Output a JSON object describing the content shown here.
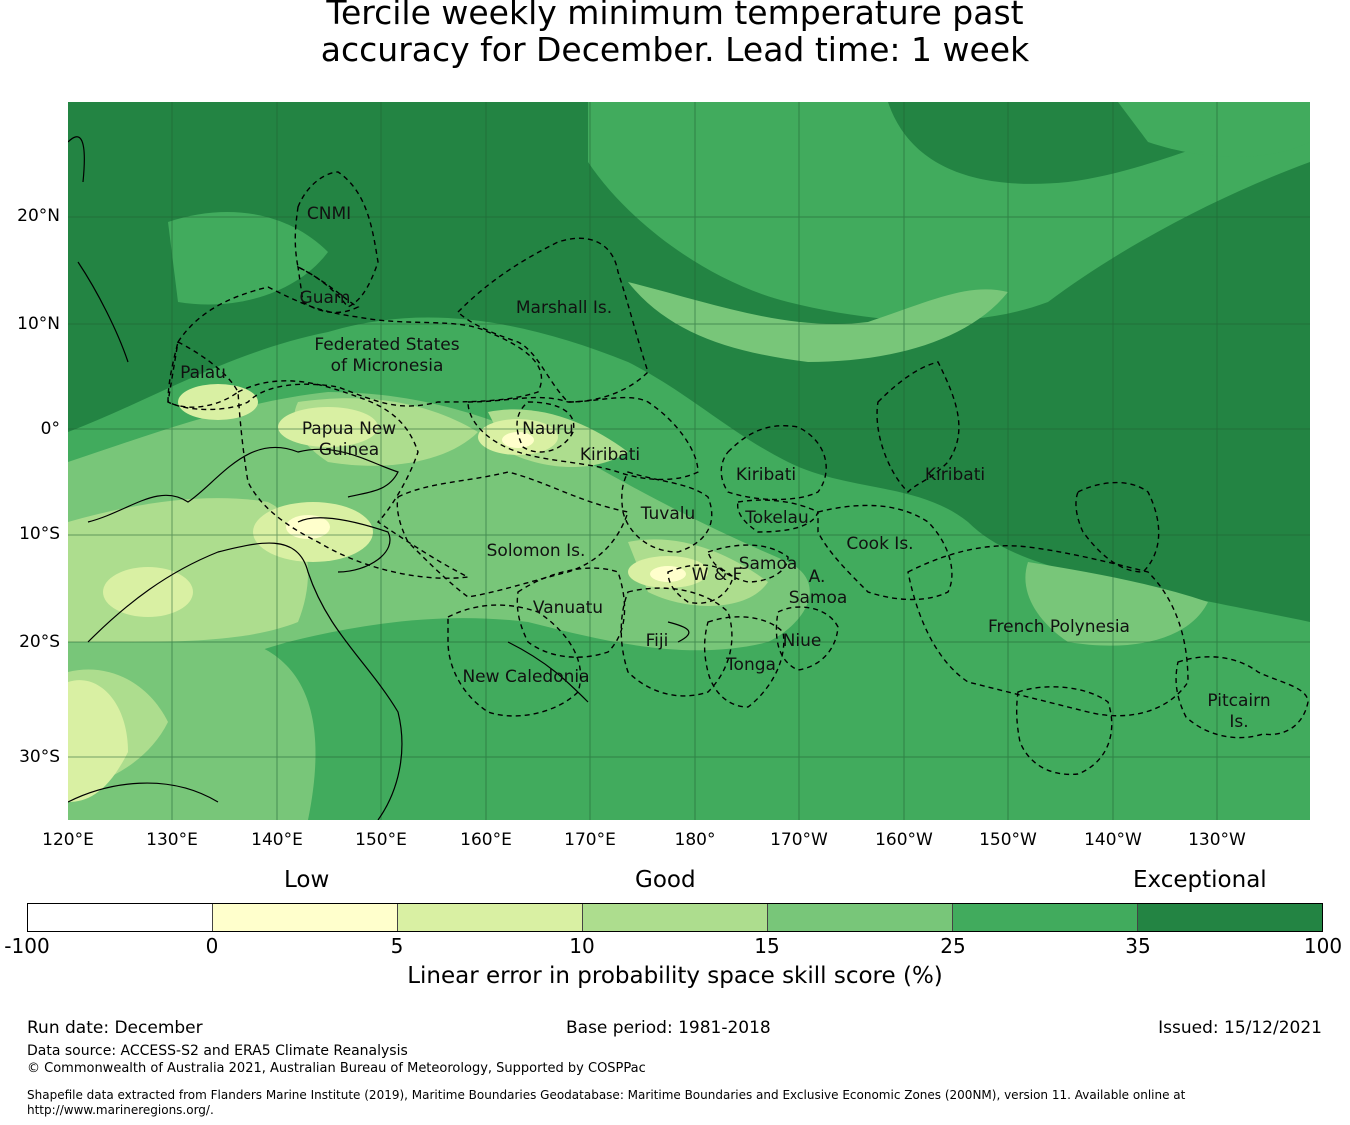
{
  "title_line1": "Tercile weekly minimum temperature past",
  "title_line2": "accuracy for December. Lead time: 1 week",
  "map": {
    "lat_labels": [
      "20°N",
      "10°N",
      "0°",
      "10°S",
      "20°S",
      "30°S"
    ],
    "lon_labels": [
      "120°E",
      "130°E",
      "140°E",
      "150°E",
      "160°E",
      "170°E",
      "180°",
      "170°W",
      "160°W",
      "150°W",
      "140°W",
      "130°W"
    ],
    "region_labels": [
      "CNMI",
      "Guam",
      "Marshall Is.",
      "Federated States",
      "of Micronesia",
      "Palau",
      "Papua New",
      "Guinea",
      "Nauru",
      "Kiribati",
      "Kiribati",
      "Kiribati",
      "Tuvalu",
      "Tokelau",
      "Solomon Is.",
      "Cook Is.",
      "Samoa",
      "W & F",
      "A.",
      "Samoa",
      "Vanuatu",
      "Fiji",
      "Niue",
      "Tonga",
      "French Polynesia",
      "New Caledonia",
      "Pitcairn",
      "Is."
    ]
  },
  "colorbar": {
    "categories": [
      "Low",
      "Good",
      "Exceptional"
    ],
    "ticks": [
      "-100",
      "0",
      "5",
      "10",
      "15",
      "25",
      "35",
      "100"
    ],
    "colors": [
      "#ffffff",
      "#ffffcc",
      "#d9f0a3",
      "#addd8e",
      "#78c679",
      "#41ab5d",
      "#238443"
    ],
    "title": "Linear error in probability space skill score (%)"
  },
  "footer": {
    "run_date": "Run date: December",
    "base_period": "Base period: 1981-2018",
    "issued": "Issued: 15/12/2021",
    "data_source": "Data source: ACCESS-S2 and ERA5 Climate Reanalysis",
    "copyright": "© Commonwealth of Australia 2021, Australian Bureau of Meteorology, Supported by COSPPac",
    "shapefile_note": "Shapefile data extracted from Flanders Marine Institute (2019), Maritime Boundaries Geodatabase: Maritime Boundaries and Exclusive Economic Zones (200NM), version 11. Available online at http://www.marineregions.org/."
  }
}
